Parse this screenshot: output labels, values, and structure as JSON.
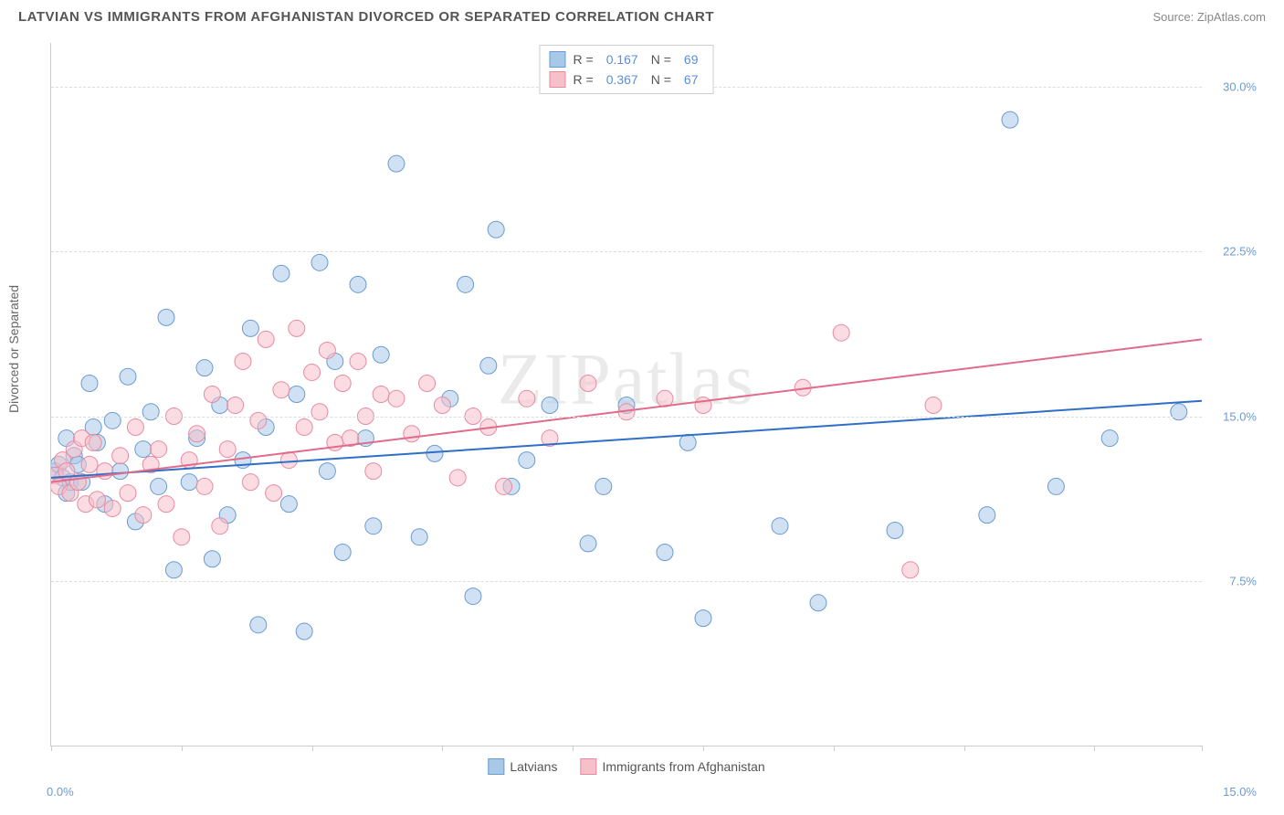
{
  "title": "LATVIAN VS IMMIGRANTS FROM AFGHANISTAN DIVORCED OR SEPARATED CORRELATION CHART",
  "source": "Source: ZipAtlas.com",
  "watermark": "ZIPatlas",
  "chart": {
    "type": "scatter",
    "ylabel": "Divorced or Separated",
    "xlim": [
      0,
      15
    ],
    "ylim": [
      0,
      32
    ],
    "x_ticks": [
      0,
      1.7,
      3.4,
      5.1,
      6.8,
      8.5,
      10.2,
      11.9,
      13.6,
      15
    ],
    "x_tick_labels_visible": {
      "0": "0.0%",
      "15": "15.0%"
    },
    "y_ticks": [
      7.5,
      15.0,
      22.5,
      30.0
    ],
    "y_tick_labels": [
      "7.5%",
      "15.0%",
      "22.5%",
      "30.0%"
    ],
    "background_color": "#ffffff",
    "grid_color": "#dddddd",
    "axis_color": "#cccccc",
    "marker_radius": 9,
    "marker_opacity": 0.55,
    "line_width": 2,
    "label_fontsize": 14,
    "tick_fontsize": 13,
    "tick_color": "#6b9bd1"
  },
  "series": [
    {
      "name": "Latvians",
      "color_fill": "#a8c8e8",
      "color_stroke": "#6b9bd1",
      "line_color": "#2f6fc7",
      "R": "0.167",
      "N": "69",
      "trend": {
        "x1": 0,
        "y1": 12.2,
        "x2": 15,
        "y2": 15.7
      },
      "points": [
        [
          0.05,
          12.5
        ],
        [
          0.1,
          12.8
        ],
        [
          0.15,
          12.2
        ],
        [
          0.2,
          14.0
        ],
        [
          0.2,
          11.5
        ],
        [
          0.25,
          12.0
        ],
        [
          0.3,
          13.2
        ],
        [
          0.35,
          12.8
        ],
        [
          0.4,
          12.0
        ],
        [
          0.5,
          16.5
        ],
        [
          0.55,
          14.5
        ],
        [
          0.6,
          13.8
        ],
        [
          0.7,
          11.0
        ],
        [
          0.8,
          14.8
        ],
        [
          0.9,
          12.5
        ],
        [
          1.0,
          16.8
        ],
        [
          1.1,
          10.2
        ],
        [
          1.2,
          13.5
        ],
        [
          1.3,
          15.2
        ],
        [
          1.4,
          11.8
        ],
        [
          1.5,
          19.5
        ],
        [
          1.6,
          8.0
        ],
        [
          1.8,
          12.0
        ],
        [
          1.9,
          14.0
        ],
        [
          2.0,
          17.2
        ],
        [
          2.1,
          8.5
        ],
        [
          2.2,
          15.5
        ],
        [
          2.3,
          10.5
        ],
        [
          2.5,
          13.0
        ],
        [
          2.6,
          19.0
        ],
        [
          2.7,
          5.5
        ],
        [
          2.8,
          14.5
        ],
        [
          3.0,
          21.5
        ],
        [
          3.1,
          11.0
        ],
        [
          3.2,
          16.0
        ],
        [
          3.3,
          5.2
        ],
        [
          3.5,
          22.0
        ],
        [
          3.6,
          12.5
        ],
        [
          3.7,
          17.5
        ],
        [
          3.8,
          8.8
        ],
        [
          4.0,
          21.0
        ],
        [
          4.1,
          14.0
        ],
        [
          4.2,
          10.0
        ],
        [
          4.3,
          17.8
        ],
        [
          4.5,
          26.5
        ],
        [
          4.8,
          9.5
        ],
        [
          5.0,
          13.3
        ],
        [
          5.2,
          15.8
        ],
        [
          5.4,
          21.0
        ],
        [
          5.5,
          6.8
        ],
        [
          5.7,
          17.3
        ],
        [
          5.8,
          23.5
        ],
        [
          6.0,
          11.8
        ],
        [
          6.2,
          13.0
        ],
        [
          6.5,
          15.5
        ],
        [
          7.0,
          9.2
        ],
        [
          7.2,
          11.8
        ],
        [
          7.5,
          15.5
        ],
        [
          8.0,
          8.8
        ],
        [
          8.3,
          13.8
        ],
        [
          8.5,
          5.8
        ],
        [
          9.5,
          10.0
        ],
        [
          10.0,
          6.5
        ],
        [
          11.0,
          9.8
        ],
        [
          12.2,
          10.5
        ],
        [
          12.5,
          28.5
        ],
        [
          13.1,
          11.8
        ],
        [
          13.8,
          14.0
        ],
        [
          14.7,
          15.2
        ]
      ]
    },
    {
      "name": "Immigrants from Afghanistan",
      "color_fill": "#f5c0ca",
      "color_stroke": "#e88ba0",
      "line_color": "#e06b8a",
      "R": "0.367",
      "N": "67",
      "trend": {
        "x1": 0,
        "y1": 12.0,
        "x2": 15,
        "y2": 18.5
      },
      "points": [
        [
          0.05,
          12.3
        ],
        [
          0.1,
          11.8
        ],
        [
          0.15,
          13.0
        ],
        [
          0.2,
          12.5
        ],
        [
          0.25,
          11.5
        ],
        [
          0.3,
          13.5
        ],
        [
          0.35,
          12.0
        ],
        [
          0.4,
          14.0
        ],
        [
          0.45,
          11.0
        ],
        [
          0.5,
          12.8
        ],
        [
          0.55,
          13.8
        ],
        [
          0.6,
          11.2
        ],
        [
          0.7,
          12.5
        ],
        [
          0.8,
          10.8
        ],
        [
          0.9,
          13.2
        ],
        [
          1.0,
          11.5
        ],
        [
          1.1,
          14.5
        ],
        [
          1.2,
          10.5
        ],
        [
          1.3,
          12.8
        ],
        [
          1.4,
          13.5
        ],
        [
          1.5,
          11.0
        ],
        [
          1.6,
          15.0
        ],
        [
          1.7,
          9.5
        ],
        [
          1.8,
          13.0
        ],
        [
          1.9,
          14.2
        ],
        [
          2.0,
          11.8
        ],
        [
          2.1,
          16.0
        ],
        [
          2.2,
          10.0
        ],
        [
          2.3,
          13.5
        ],
        [
          2.4,
          15.5
        ],
        [
          2.5,
          17.5
        ],
        [
          2.6,
          12.0
        ],
        [
          2.7,
          14.8
        ],
        [
          2.8,
          18.5
        ],
        [
          2.9,
          11.5
        ],
        [
          3.0,
          16.2
        ],
        [
          3.1,
          13.0
        ],
        [
          3.2,
          19.0
        ],
        [
          3.3,
          14.5
        ],
        [
          3.4,
          17.0
        ],
        [
          3.5,
          15.2
        ],
        [
          3.6,
          18.0
        ],
        [
          3.7,
          13.8
        ],
        [
          3.8,
          16.5
        ],
        [
          3.9,
          14.0
        ],
        [
          4.0,
          17.5
        ],
        [
          4.1,
          15.0
        ],
        [
          4.2,
          12.5
        ],
        [
          4.3,
          16.0
        ],
        [
          4.5,
          15.8
        ],
        [
          4.7,
          14.2
        ],
        [
          4.9,
          16.5
        ],
        [
          5.1,
          15.5
        ],
        [
          5.3,
          12.2
        ],
        [
          5.5,
          15.0
        ],
        [
          5.7,
          14.5
        ],
        [
          5.9,
          11.8
        ],
        [
          6.2,
          15.8
        ],
        [
          6.5,
          14.0
        ],
        [
          7.0,
          16.5
        ],
        [
          7.5,
          15.2
        ],
        [
          8.0,
          15.8
        ],
        [
          8.5,
          15.5
        ],
        [
          9.8,
          16.3
        ],
        [
          10.3,
          18.8
        ],
        [
          11.2,
          8.0
        ],
        [
          11.5,
          15.5
        ]
      ]
    }
  ],
  "legend_top": {
    "r_label": "R = ",
    "n_label": "N = "
  },
  "bottom_legend": {
    "items": [
      "Latvians",
      "Immigrants from Afghanistan"
    ]
  }
}
